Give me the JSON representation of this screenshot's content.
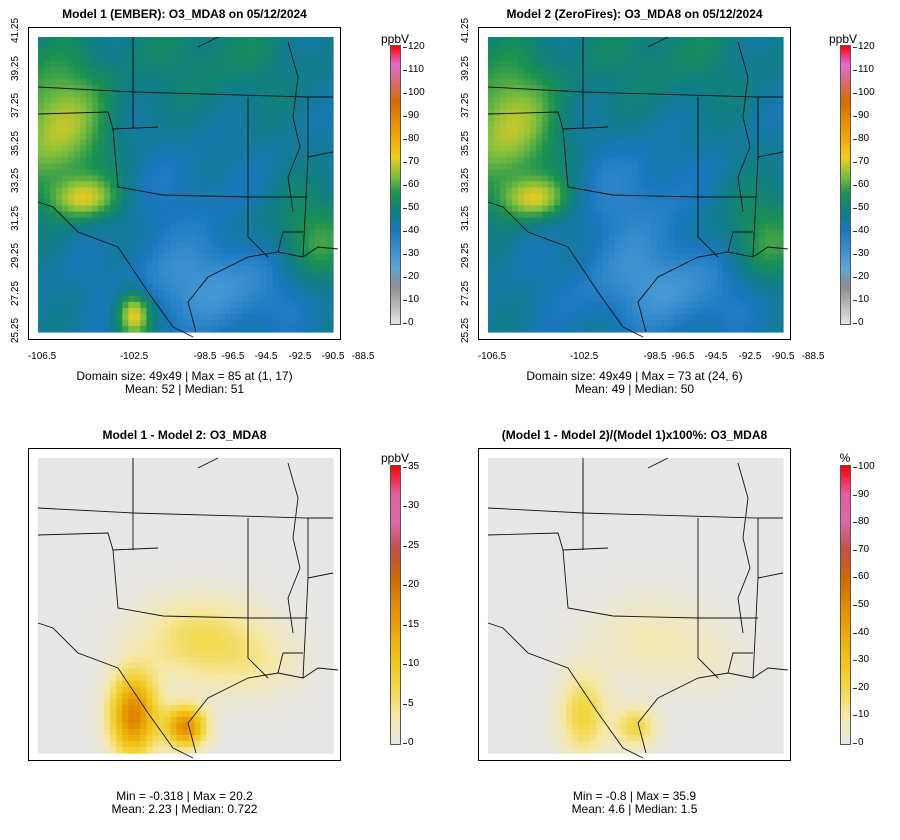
{
  "colors": {
    "abs_scale": [
      "#e6e6e6",
      "#b8b8b8",
      "#8f8f8f",
      "#5aa6d6",
      "#3b8fd0",
      "#1a77bd",
      "#0f7e86",
      "#1a9150",
      "#7fbf3c",
      "#f2cc1f",
      "#f2a900",
      "#e68a00",
      "#d46c00",
      "#d96a6a",
      "#e56ad6",
      "#ff0000"
    ],
    "diff_scale": [
      "#e6e6e6",
      "#f5e9a8",
      "#f2d84a",
      "#f0c419",
      "#eda80a",
      "#df8a00",
      "#cc6a00",
      "#c3504a",
      "#d96aa8",
      "#e55c9b",
      "#ff0000"
    ]
  },
  "panels": [
    {
      "title": "Model 1 (EMBER): O3_MDA8 on 05/12/2024",
      "stats_line1": "Domain size: 49x49 | Max = 85 at (1, 17)",
      "stats_line2": "Mean: 52 |  Median: 51",
      "colorbar": {
        "unit": "ppbV",
        "ticks": [
          "120",
          "110",
          "100",
          "90",
          "80",
          "70",
          "60",
          "50",
          "40",
          "30",
          "20",
          "10",
          "0"
        ],
        "scale": "abs"
      },
      "x_ticks": [
        "-106.5",
        "-102.5",
        "-98.5",
        "-96.5",
        "-94.5",
        "-92.5",
        "-90.5",
        "-88.5"
      ],
      "y_ticks": [
        "41.25",
        "39.25",
        "37.25",
        "35.25",
        "33.25",
        "31.25",
        "29.25",
        "27.25",
        "25.25"
      ]
    },
    {
      "title": "Model 2 (ZeroFires): O3_MDA8 on 05/12/2024",
      "stats_line1": "Domain size: 49x49 | Max = 73 at (24, 6)",
      "stats_line2": "Mean: 49 |  Median: 50",
      "colorbar": {
        "unit": "ppbV",
        "ticks": [
          "120",
          "110",
          "100",
          "90",
          "80",
          "70",
          "60",
          "50",
          "40",
          "30",
          "20",
          "10",
          "0"
        ],
        "scale": "abs"
      },
      "x_ticks": [
        "-106.5",
        "-102.5",
        "-98.5",
        "-96.5",
        "-94.5",
        "-92.5",
        "-90.5",
        "-88.5"
      ],
      "y_ticks": [
        "41.25",
        "39.25",
        "37.25",
        "35.25",
        "33.25",
        "31.25",
        "29.25",
        "27.25",
        "25.25"
      ]
    },
    {
      "title": "Model 1 - Model 2: O3_MDA8",
      "stats_line1": "Min = -0.318 | Max = 20.2",
      "stats_line2": "Mean: 2.23 |  Median: 0.722",
      "colorbar": {
        "unit": "ppbV",
        "ticks": [
          "35",
          "30",
          "25",
          "20",
          "15",
          "10",
          "5",
          "0"
        ],
        "scale": "diff"
      }
    },
    {
      "title": "(Model 1 - Model 2)/(Model 1)x100%: O3_MDA8",
      "stats_line1": "Min = -0.8 | Max = 35.9",
      "stats_line2": "Mean: 4.6 |  Median: 1.5",
      "colorbar": {
        "unit": "%",
        "ticks": [
          "100",
          "90",
          "80",
          "70",
          "60",
          "50",
          "40",
          "30",
          "20",
          "10",
          "0"
        ],
        "scale": "diff"
      }
    }
  ],
  "chart_data": [
    {
      "type": "heatmap",
      "title": "Model 1 (EMBER): O3_MDA8 on 05/12/2024",
      "grid_size": [
        49,
        49
      ],
      "xlabel": "",
      "ylabel": "",
      "x_ticks": [
        -106.5,
        -102.5,
        -98.5,
        -96.5,
        -94.5,
        -92.5,
        -90.5,
        -88.5
      ],
      "y_ticks": [
        41.25,
        39.25,
        37.25,
        35.25,
        33.25,
        31.25,
        29.25,
        27.25,
        25.25
      ],
      "colorbar_range": [
        0,
        120
      ],
      "unit": "ppbV",
      "max": 85,
      "max_at": [
        1,
        17
      ],
      "mean": 52,
      "median": 51
    },
    {
      "type": "heatmap",
      "title": "Model 2 (ZeroFires): O3_MDA8 on 05/12/2024",
      "grid_size": [
        49,
        49
      ],
      "xlabel": "",
      "ylabel": "",
      "x_ticks": [
        -106.5,
        -102.5,
        -98.5,
        -96.5,
        -94.5,
        -92.5,
        -90.5,
        -88.5
      ],
      "y_ticks": [
        41.25,
        39.25,
        37.25,
        35.25,
        33.25,
        31.25,
        29.25,
        27.25,
        25.25
      ],
      "colorbar_range": [
        0,
        120
      ],
      "unit": "ppbV",
      "max": 73,
      "max_at": [
        24,
        6
      ],
      "mean": 49,
      "median": 50
    },
    {
      "type": "heatmap",
      "title": "Model 1 - Model 2: O3_MDA8",
      "grid_size": [
        49,
        49
      ],
      "colorbar_range": [
        0,
        35
      ],
      "unit": "ppbV",
      "min": -0.318,
      "max": 20.2,
      "mean": 2.23,
      "median": 0.722
    },
    {
      "type": "heatmap",
      "title": "(Model 1 - Model 2)/(Model 1)x100%: O3_MDA8",
      "grid_size": [
        49,
        49
      ],
      "colorbar_range": [
        0,
        100
      ],
      "unit": "%",
      "min": -0.8,
      "max": 35.9,
      "mean": 4.6,
      "median": 1.5
    }
  ]
}
